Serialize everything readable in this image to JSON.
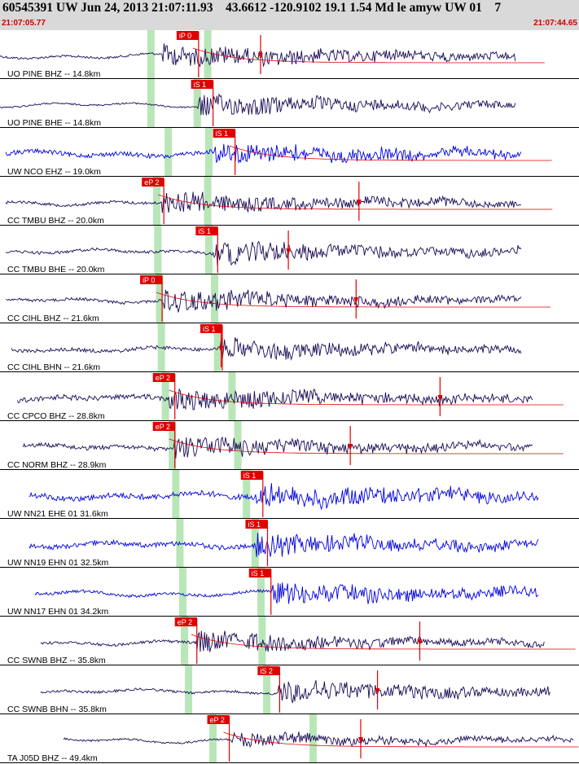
{
  "header": {
    "title": "60545391 UW Jun 24, 2013 21:07:11.93    43.6612 -120.9102 19.1 1.54 Md le amyw UW 01    7",
    "start_time": "21:07:05.77",
    "end_time": "21:07:44.65"
  },
  "colors": {
    "header_bg": "#d9d9d9",
    "time_text": "#d00000",
    "trace_dark": "#1a0a55",
    "trace_blue": "#0000e0",
    "pick_red": "#e00000",
    "window_green": "#b8e6b8"
  },
  "traces": [
    {
      "label": "UO PINE BHZ -- 14.8km",
      "color": "dark",
      "pick": "iP 0",
      "pick_pos": 0.305,
      "green": [
        0.26,
        0.358
      ],
      "start": 0.0,
      "end": 0.89,
      "amp": 0.28,
      "noise": 0.28,
      "onset": 0.28,
      "burst": 0.55,
      "decay": 0.45,
      "marker": 0.45,
      "coda": true
    },
    {
      "label": "UO PINE BHE -- 14.8km",
      "color": "dark",
      "pick": "iS 1",
      "pick_pos": 0.33,
      "green": [
        0.26,
        0.34
      ],
      "start": 0.0,
      "end": 0.89,
      "amp": 0.25,
      "noise": 0.2,
      "onset": 0.34,
      "burst": 0.6,
      "decay": 0.35,
      "marker": -1,
      "coda": false
    },
    {
      "label": "UW NCO EHZ -- 19.0km",
      "color": "blue",
      "pick": "iS 1",
      "pick_pos": 0.368,
      "green": [
        0.29,
        0.36
      ],
      "start": 0.01,
      "end": 0.9,
      "amp": 0.3,
      "noise": 0.55,
      "onset": 0.37,
      "burst": 0.6,
      "decay": 0.3,
      "marker": -1,
      "coda": true
    },
    {
      "label": "CC TMBU BHZ -- 20.0km",
      "color": "dark",
      "pick": "eP 2",
      "pick_pos": 0.245,
      "green": [
        0.27,
        0.358
      ],
      "start": 0.01,
      "end": 0.9,
      "amp": 0.25,
      "noise": 0.35,
      "onset": 0.28,
      "burst": 0.6,
      "decay": 0.35,
      "marker": 0.62,
      "coda": true
    },
    {
      "label": "CC TMBU BHE -- 20.0km",
      "color": "dark",
      "pick": "iS 1",
      "pick_pos": 0.338,
      "green": [
        0.272,
        0.36
      ],
      "start": 0.01,
      "end": 0.9,
      "amp": 0.25,
      "noise": 0.35,
      "onset": 0.37,
      "burst": 0.65,
      "decay": 0.3,
      "marker": 0.498,
      "coda": false
    },
    {
      "label": "CC CIHL BHZ -- 21.6km",
      "color": "dark",
      "pick": "iP 0",
      "pick_pos": 0.242,
      "green": [
        0.275,
        0.37
      ],
      "start": 0.01,
      "end": 0.9,
      "amp": 0.25,
      "noise": 0.35,
      "onset": 0.28,
      "burst": 0.6,
      "decay": 0.35,
      "marker": 0.615,
      "coda": true
    },
    {
      "label": "CC CIHL BHN -- 21.6km",
      "color": "dark",
      "pick": "iS 1",
      "pick_pos": 0.346,
      "green": [
        0.278,
        0.375
      ],
      "start": 0.02,
      "end": 0.9,
      "amp": 0.25,
      "noise": 0.45,
      "onset": 0.38,
      "burst": 0.55,
      "decay": 0.3,
      "marker": 0.382,
      "coda": false
    },
    {
      "label": "CC CPCO BHZ -- 28.8km",
      "color": "dark",
      "pick": "eP 2",
      "pick_pos": 0.264,
      "green": [
        0.285,
        0.4
      ],
      "start": 0.03,
      "end": 0.92,
      "amp": 0.25,
      "noise": 0.65,
      "onset": 0.29,
      "burst": 0.6,
      "decay": 0.3,
      "marker": 0.76,
      "coda": true
    },
    {
      "label": "CC NORM BHZ -- 28.9km",
      "color": "dark",
      "pick": "eP 2",
      "pick_pos": 0.264,
      "green": [
        0.297,
        0.41
      ],
      "start": 0.04,
      "end": 0.92,
      "amp": 0.25,
      "noise": 0.55,
      "onset": 0.3,
      "burst": 0.6,
      "decay": 0.3,
      "marker": 0.605,
      "coda": true
    },
    {
      "label": "UW NN21 EHE 01 31.6km",
      "color": "blue",
      "pick": "iS 1",
      "pick_pos": 0.416,
      "green": [
        0.303,
        0.425
      ],
      "start": 0.05,
      "end": 0.93,
      "amp": 0.3,
      "noise": 0.7,
      "onset": 0.44,
      "burst": 0.6,
      "decay": 0.35,
      "marker": -1,
      "coda": false
    },
    {
      "label": "UW NN19 EHN 01 32.5km",
      "color": "blue",
      "pick": "iS 1",
      "pick_pos": 0.424,
      "green": [
        0.31,
        0.44
      ],
      "start": 0.05,
      "end": 0.93,
      "amp": 0.3,
      "noise": 0.6,
      "onset": 0.44,
      "burst": 0.6,
      "decay": 0.3,
      "marker": -1,
      "coda": false
    },
    {
      "label": "UW NN17 EHN 01 34.2km",
      "color": "blue",
      "pick": "iS 1",
      "pick_pos": 0.43,
      "green": [
        0.315,
        0.45
      ],
      "start": 0.06,
      "end": 0.93,
      "amp": 0.3,
      "noise": 0.35,
      "onset": 0.47,
      "burst": 0.6,
      "decay": 0.35,
      "marker": -1,
      "coda": false
    },
    {
      "label": "CC SWNB BHZ -- 35.8km",
      "color": "dark",
      "pick": "eP 2",
      "pick_pos": 0.302,
      "green": [
        0.318,
        0.452
      ],
      "start": 0.07,
      "end": 0.94,
      "amp": 0.25,
      "noise": 0.35,
      "onset": 0.34,
      "burst": 0.6,
      "decay": 0.3,
      "marker": 0.725,
      "coda": true
    },
    {
      "label": "CC SWNB BHN -- 35.8km",
      "color": "dark",
      "pick": "iS 2",
      "pick_pos": 0.445,
      "green": [
        0.325,
        0.46
      ],
      "start": 0.07,
      "end": 0.95,
      "amp": 0.25,
      "noise": 0.3,
      "onset": 0.48,
      "burst": 0.6,
      "decay": 0.35,
      "marker": 0.652,
      "coda": false
    },
    {
      "label": "TA J05D BHZ -- 49.4km",
      "color": "dark",
      "pick": "eP 2",
      "pick_pos": 0.358,
      "green": [
        0.367,
        0.54
      ],
      "start": 0.11,
      "end": 0.99,
      "amp": 0.3,
      "noise": 0.25,
      "onset": 0.4,
      "burst": 0.35,
      "decay": 0.3,
      "marker": 0.623,
      "coda": true
    }
  ]
}
